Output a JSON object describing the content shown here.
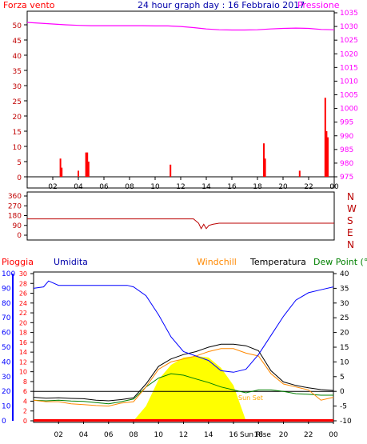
{
  "colors": {
    "wind": "#ff0000",
    "pressure": "#ff00ff",
    "title": "#0000aa",
    "axis_red": "#c00000",
    "direction": "#bb0000",
    "humidity": "#0000ff",
    "windchill": "#ff8800",
    "temperature": "#000000",
    "dewpoint": "#008000",
    "sun": "#ffff00",
    "rain": "#ff0000"
  },
  "top_panel": {
    "title": "24 hour graph day : 16 Febbraio 2017",
    "left_label": "Forza vento",
    "right_label": "Pressione",
    "left_ticks": [
      "0",
      "5",
      "10",
      "15",
      "20",
      "25",
      "30",
      "35",
      "40",
      "45",
      "50"
    ],
    "right_ticks": [
      "975",
      "980",
      "985",
      "990",
      "995",
      "1000",
      "1005",
      "1010",
      "1015",
      "1020",
      "1025",
      "1030",
      "1035"
    ],
    "x_ticks": [
      "02",
      "04",
      "06",
      "08",
      "10",
      "12",
      "14",
      "16",
      "18",
      "20",
      "22",
      "00"
    ]
  },
  "mid_panel": {
    "left_ticks": [
      "0",
      "90",
      "180",
      "270",
      "360"
    ],
    "compass": [
      "N",
      "W",
      "S",
      "E",
      "N"
    ]
  },
  "bottom_panel": {
    "labels": {
      "rain": "Pioggia",
      "humidity": "Umidita",
      "windchill": "Windchill",
      "temperature": "Temperatura",
      "dewpoint": "Dew Point (°C"
    },
    "hum_ticks": [
      "0",
      "10",
      "20",
      "30",
      "40",
      "50",
      "60",
      "70",
      "80",
      "90",
      "100"
    ],
    "rain_ticks": [
      "0",
      "2",
      "4",
      "6",
      "8",
      "10",
      "12",
      "14",
      "16",
      "18",
      "20",
      "22",
      "24",
      "26",
      "28",
      "30"
    ],
    "temp_ticks": [
      "-10",
      "-5",
      "0",
      "5",
      "10",
      "15",
      "20",
      "25",
      "30",
      "35",
      "40"
    ],
    "x_ticks": [
      "02",
      "04",
      "06",
      "08",
      "10",
      "12",
      "14",
      "16",
      "18",
      "20",
      "22",
      "00"
    ],
    "sun_set": "Sun Set",
    "sun_rise": "Sun Rise"
  },
  "chart_data": [
    {
      "type": "bar",
      "title": "24 hour graph day : 16 Febbraio 2017",
      "xlabel": "",
      "ylabel": "Forza vento",
      "ylim": [
        0,
        50
      ],
      "wind_bars": [
        {
          "h": 2.6,
          "v": 6
        },
        {
          "h": 2.7,
          "v": 3
        },
        {
          "h": 4.0,
          "v": 2
        },
        {
          "h": 4.6,
          "v": 8
        },
        {
          "h": 4.7,
          "v": 8
        },
        {
          "h": 4.8,
          "v": 5
        },
        {
          "h": 11.2,
          "v": 4
        },
        {
          "h": 18.5,
          "v": 11
        },
        {
          "h": 18.6,
          "v": 6
        },
        {
          "h": 21.3,
          "v": 2
        },
        {
          "h": 23.3,
          "v": 26
        },
        {
          "h": 23.4,
          "v": 15
        },
        {
          "h": 23.5,
          "v": 13
        }
      ],
      "series": [
        {
          "name": "Pressione",
          "ylim": [
            975,
            1035
          ],
          "x": [
            0,
            1,
            2,
            3,
            4,
            5,
            6,
            7,
            8,
            9,
            10,
            11,
            12,
            13,
            14,
            15,
            16,
            17,
            18,
            19,
            20,
            21,
            22,
            23,
            24
          ],
          "values": [
            1031.5,
            1031.2,
            1030.9,
            1030.6,
            1030.4,
            1030.3,
            1030.3,
            1030.3,
            1030.3,
            1030.3,
            1030.2,
            1030.2,
            1030.0,
            1029.6,
            1029.1,
            1028.8,
            1028.7,
            1028.7,
            1028.8,
            1029.1,
            1029.3,
            1029.4,
            1029.3,
            1028.9,
            1028.8
          ]
        }
      ]
    },
    {
      "type": "line",
      "ylabel": "",
      "ylim": [
        0,
        360
      ],
      "series": [
        {
          "name": "",
          "x": [
            0,
            13.0,
            13.4,
            13.6,
            13.8,
            14.0,
            14.2,
            14.5,
            15.0,
            16.0,
            24
          ],
          "values": [
            150,
            150,
            110,
            60,
            100,
            60,
            90,
            100,
            110,
            110,
            110
          ]
        }
      ]
    },
    {
      "type": "line",
      "xlabel": "",
      "ylabel": "",
      "ylim": [
        -10,
        40
      ],
      "series": [
        {
          "name": "Umidita",
          "axis": "humidity",
          "x": [
            0,
            0.8,
            1.2,
            2,
            4,
            6,
            7.5,
            8,
            9,
            10,
            11,
            12,
            13,
            14,
            15,
            16,
            17,
            18,
            19,
            20,
            21,
            22,
            23,
            24
          ],
          "values": [
            90,
            91,
            95,
            92,
            92,
            92,
            92,
            91,
            85,
            72,
            57,
            47,
            44,
            41,
            34,
            33,
            35,
            45,
            58,
            71,
            82,
            87,
            89,
            91
          ]
        },
        {
          "name": "Temperatura",
          "axis": "temp",
          "x": [
            0,
            1,
            2,
            3,
            4,
            5,
            6,
            7,
            8,
            9,
            10,
            11,
            12,
            13,
            14,
            15,
            16,
            17,
            18,
            19,
            20,
            21,
            22,
            23,
            24
          ],
          "values": [
            -2,
            -2.3,
            -2.2,
            -2.4,
            -2.5,
            -3,
            -3.2,
            -2.8,
            -2.2,
            2.5,
            8.5,
            11,
            12.5,
            13.5,
            15,
            16,
            16,
            15.5,
            13.8,
            7,
            3.2,
            2,
            1.2,
            0.6,
            0.3
          ]
        },
        {
          "name": "Dew Point (°C",
          "axis": "temp",
          "x": [
            0,
            1,
            2,
            3,
            4,
            5,
            6,
            7,
            8,
            9,
            10,
            11,
            12,
            13,
            14,
            15,
            16,
            17,
            18,
            19,
            20,
            21,
            22,
            23,
            24
          ],
          "values": [
            -3,
            -3.2,
            -3,
            -3.3,
            -3.4,
            -3.8,
            -4.2,
            -3.5,
            -2.6,
            1.5,
            4.5,
            6,
            5.5,
            4.2,
            3,
            1.5,
            0.5,
            -0.5,
            0.5,
            0.5,
            0,
            -0.8,
            -1,
            -1.3,
            -1.3
          ]
        },
        {
          "name": "Windchill",
          "axis": "temp",
          "x": [
            0,
            1,
            2,
            3,
            4,
            5,
            6,
            7,
            8,
            9,
            10,
            11,
            12,
            13,
            14,
            15,
            16,
            17,
            18,
            19,
            20,
            21,
            22,
            23,
            24
          ],
          "values": [
            -3,
            -3.5,
            -3.5,
            -4.2,
            -4.5,
            -4.8,
            -5,
            -4,
            -3.5,
            1.5,
            7.5,
            10,
            11,
            12,
            13.5,
            14.5,
            14.5,
            13,
            12,
            6,
            2.5,
            1.5,
            0.5,
            -3,
            -2
          ]
        },
        {
          "name": "Sun",
          "axis": "temp",
          "x": [
            8,
            9,
            10,
            11,
            12,
            13,
            14,
            15,
            16,
            17
          ],
          "values": [
            -10,
            -5,
            4,
            9,
            11.5,
            12,
            11.5,
            8,
            2,
            -10
          ]
        },
        {
          "name": "Pioggia",
          "axis": "rain",
          "x": [
            0,
            8.5,
            24
          ],
          "values": [
            0,
            0,
            0
          ]
        }
      ]
    }
  ]
}
